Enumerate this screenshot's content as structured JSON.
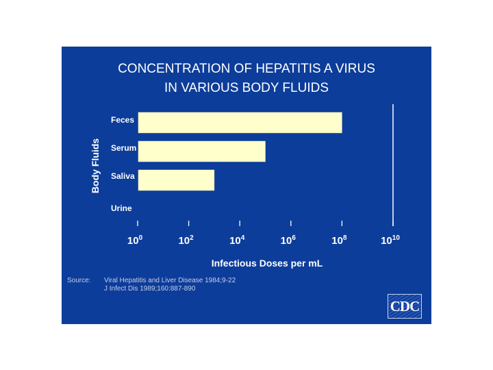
{
  "chart_data": {
    "type": "bar",
    "orientation": "horizontal",
    "title": [
      "CONCENTRATION OF HEPATITIS A VIRUS",
      "IN VARIOUS BODY FLUIDS"
    ],
    "ylabel": "Body Fluids",
    "xlabel": "Infectious Doses per mL",
    "xscale": "log",
    "categories": [
      "Feces",
      "Serum",
      "Saliva",
      "Urine"
    ],
    "values": [
      100000000.0,
      100000.0,
      1000.0,
      null
    ],
    "xlim_exponents": [
      0,
      10
    ],
    "x_ticks": [
      {
        "base": "10",
        "exp": "0",
        "value": 0
      },
      {
        "base": "10",
        "exp": "2",
        "value": 2
      },
      {
        "base": "10",
        "exp": "4",
        "value": 4
      },
      {
        "base": "10",
        "exp": "6",
        "value": 6
      },
      {
        "base": "10",
        "exp": "8",
        "value": 8
      },
      {
        "base": "10",
        "exp": "10",
        "value": 10
      }
    ],
    "colors": {
      "bar": "#ffffcc",
      "background": "#0d3d9a",
      "text": "#ffffff"
    }
  },
  "source": {
    "label": "Source:",
    "lines": [
      "Viral Hepatitis and Liver Disease 1984;9-22",
      "J Infect Dis 1989;160:887-890"
    ]
  },
  "logo": {
    "text": "CDC"
  }
}
